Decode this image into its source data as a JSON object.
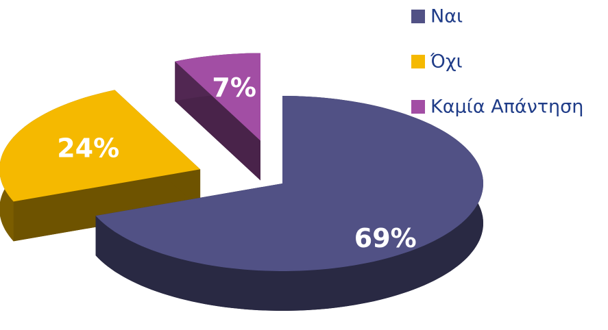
{
  "chart_data": {
    "type": "pie",
    "categories": [
      "Ναι",
      "Όχι",
      "Καμία Απάντηση"
    ],
    "values": [
      69,
      24,
      7
    ],
    "value_labels": [
      "69%",
      "24%",
      "7%"
    ],
    "colors": [
      "#515185",
      "#f5b900",
      "#a24ea4"
    ],
    "legend": "right"
  }
}
